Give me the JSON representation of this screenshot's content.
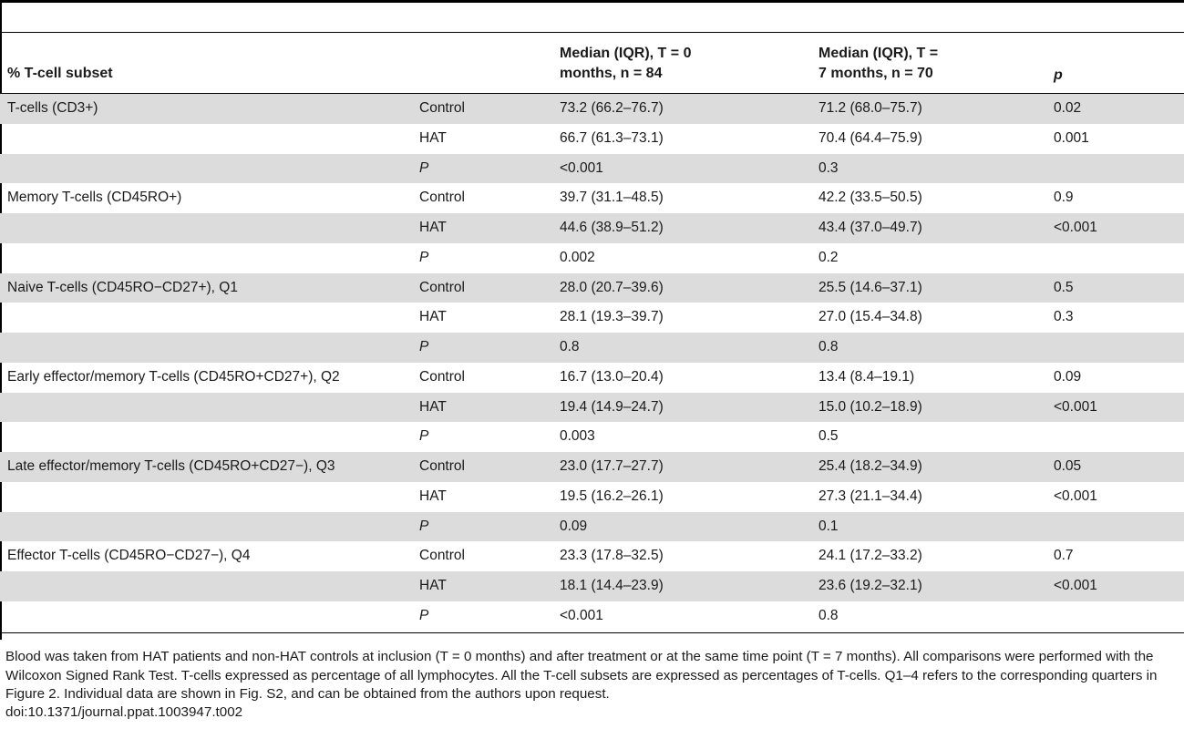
{
  "table": {
    "headers": {
      "subset": "% T-cell subset",
      "t0_line1": "Median (IQR), T = 0",
      "t0_line2": "months, n = 84",
      "t7_line1": "Median (IQR), T =",
      "t7_line2": "7 months, n = 70",
      "p": "p"
    },
    "rows": [
      {
        "subset": "T-cells (CD3+)",
        "group": "Control",
        "t0": "73.2 (66.2–76.7)",
        "t7": "71.2 (68.0–75.7)",
        "p": "0.02"
      },
      {
        "subset": "",
        "group": "HAT",
        "t0": "66.7 (61.3–73.1)",
        "t7": "70.4 (64.4–75.9)",
        "p": "0.001"
      },
      {
        "subset": "",
        "group": "P",
        "t0": "<0.001",
        "t7": "0.3",
        "p": ""
      },
      {
        "subset": "Memory T-cells (CD45RO+)",
        "group": "Control",
        "t0": "39.7 (31.1–48.5)",
        "t7": "42.2 (33.5–50.5)",
        "p": "0.9"
      },
      {
        "subset": "",
        "group": "HAT",
        "t0": "44.6 (38.9–51.2)",
        "t7": "43.4 (37.0–49.7)",
        "p": "<0.001"
      },
      {
        "subset": "",
        "group": "P",
        "t0": "0.002",
        "t7": "0.2",
        "p": ""
      },
      {
        "subset": "Naive T-cells (CD45RO−CD27+), Q1",
        "group": "Control",
        "t0": "28.0 (20.7–39.6)",
        "t7": "25.5 (14.6–37.1)",
        "p": "0.5"
      },
      {
        "subset": "",
        "group": "HAT",
        "t0": "28.1 (19.3–39.7)",
        "t7": "27.0 (15.4–34.8)",
        "p": "0.3"
      },
      {
        "subset": "",
        "group": "P",
        "t0": "0.8",
        "t7": "0.8",
        "p": ""
      },
      {
        "subset": "Early effector/memory T-cells (CD45RO+CD27+), Q2",
        "group": "Control",
        "t0": "16.7 (13.0–20.4)",
        "t7": "13.4 (8.4–19.1)",
        "p": "0.09"
      },
      {
        "subset": "",
        "group": "HAT",
        "t0": "19.4 (14.9–24.7)",
        "t7": "15.0 (10.2–18.9)",
        "p": "<0.001"
      },
      {
        "subset": "",
        "group": "P",
        "t0": "0.003",
        "t7": "0.5",
        "p": ""
      },
      {
        "subset": "Late effector/memory T-cells (CD45RO+CD27−), Q3",
        "group": "Control",
        "t0": "23.0 (17.7–27.7)",
        "t7": "25.4 (18.2–34.9)",
        "p": "0.05"
      },
      {
        "subset": "",
        "group": "HAT",
        "t0": "19.5 (16.2–26.1)",
        "t7": "27.3 (21.1–34.4)",
        "p": "<0.001"
      },
      {
        "subset": "",
        "group": "P",
        "t0": "0.09",
        "t7": "0.1",
        "p": ""
      },
      {
        "subset": "Effector T-cells (CD45RO−CD27−), Q4",
        "group": "Control",
        "t0": "23.3 (17.8–32.5)",
        "t7": "24.1 (17.2–33.2)",
        "p": "0.7"
      },
      {
        "subset": "",
        "group": "HAT",
        "t0": "18.1 (14.4–23.9)",
        "t7": "23.6 (19.2–32.1)",
        "p": "<0.001"
      },
      {
        "subset": "",
        "group": "P",
        "t0": "<0.001",
        "t7": "0.8",
        "p": ""
      }
    ]
  },
  "footnote": "Blood was taken from HAT patients and non-HAT controls at inclusion (T = 0 months) and after treatment or at the same time point (T = 7 months). All comparisons were performed with the Wilcoxon Signed Rank Test. T-cells expressed as percentage of all lymphocytes. All the T-cell subsets are expressed as percentages of T-cells. Q1–4 refers to the corresponding quarters in Figure 2. Individual data are shown in Fig. S2, and can be obtained from the authors upon request.",
  "doi": "doi:10.1371/journal.ppat.1003947.t002",
  "colors": {
    "row_shade": "#dcdcdc",
    "rule": "#000000"
  }
}
